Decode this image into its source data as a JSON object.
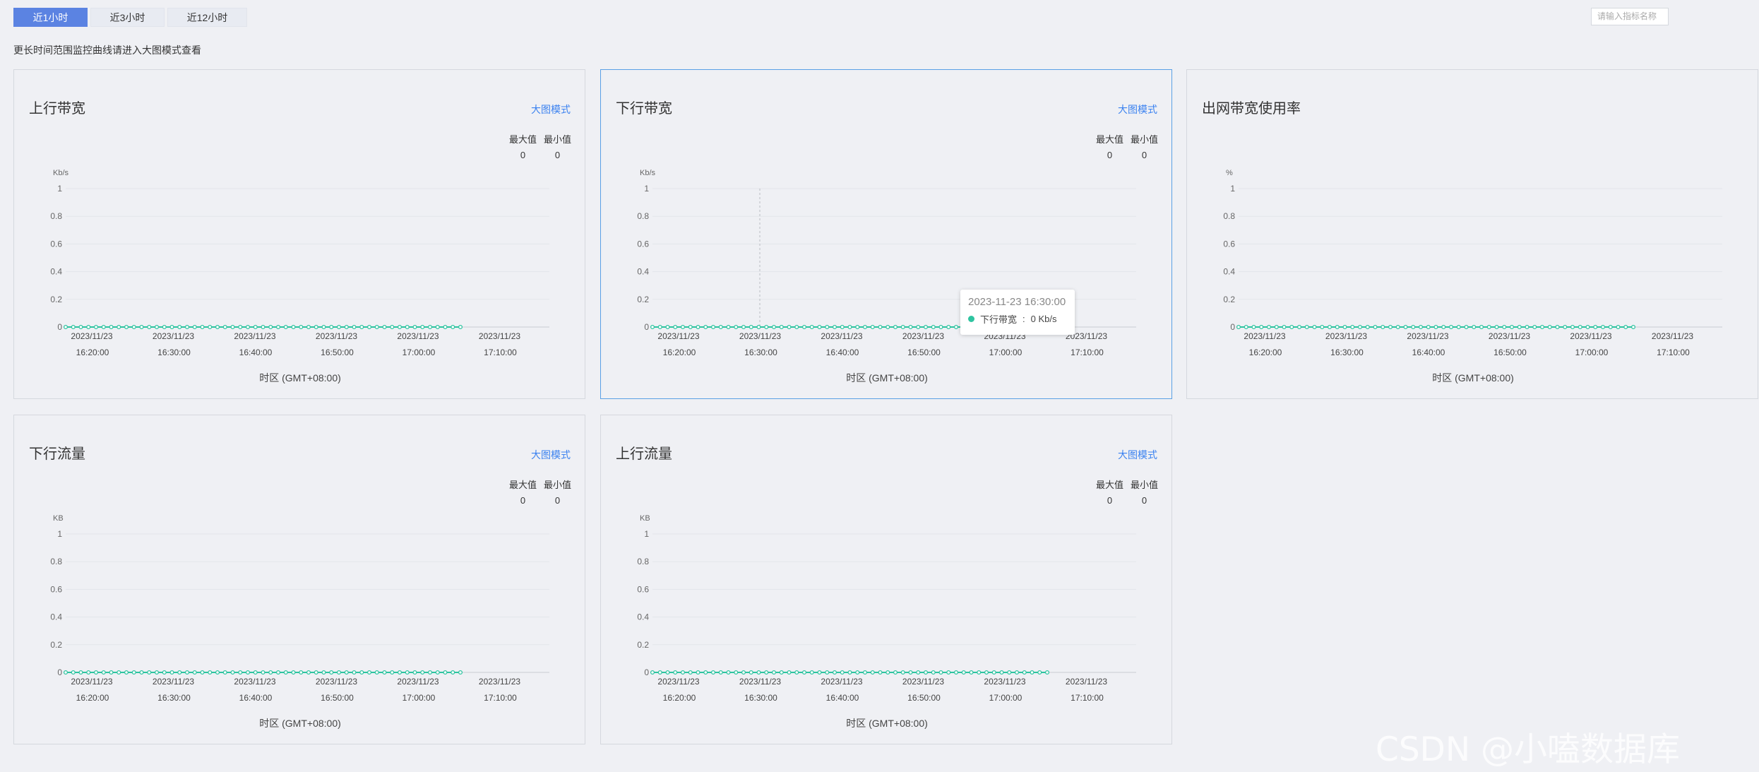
{
  "toolbar": {
    "ranges": [
      "近1小时",
      "近3小时",
      "近12小时"
    ],
    "active_range": "近1小时",
    "search_placeholder": "请输入指标名称"
  },
  "hint": "更长时间范围监控曲线请进入大图模式查看",
  "big_mode_label": "大图模式",
  "stat_labels": {
    "max": "最大值",
    "min": "最小值"
  },
  "timezone_label": "时区 (GMT+08:00)",
  "colors": {
    "series": "#2ec4a0",
    "accent": "#5b83e2",
    "link": "#3b82f0",
    "highlight_border": "#5aa0e5"
  },
  "tooltip": {
    "time": "2023-11-23 16:30:00",
    "series": "下行带宽",
    "value": "0 Kb/s"
  },
  "watermark": "CSDN @小嗑数据库",
  "chart_data": [
    {
      "type": "line",
      "title": "上行带宽",
      "unit": "Kb/s",
      "max": "0",
      "min": "0",
      "x_ticks": [
        [
          "2023/11/23",
          "16:20:00"
        ],
        [
          "2023/11/23",
          "16:30:00"
        ],
        [
          "2023/11/23",
          "16:40:00"
        ],
        [
          "2023/11/23",
          "16:50:00"
        ],
        [
          "2023/11/23",
          "17:00:00"
        ],
        [
          "2023/11/23",
          "17:10:00"
        ]
      ],
      "y_ticks": [
        "0",
        "0.2",
        "0.4",
        "0.6",
        "0.8",
        "1"
      ],
      "ylim": [
        0,
        1
      ],
      "series": [
        {
          "name": "上行带宽",
          "points": 53,
          "value": 0
        }
      ]
    },
    {
      "type": "line",
      "title": "下行带宽",
      "unit": "Kb/s",
      "max": "0",
      "min": "0",
      "highlight": true,
      "x_ticks": [
        [
          "2023/11/23",
          "16:20:00"
        ],
        [
          "2023/11/23",
          "16:30:00"
        ],
        [
          "2023/11/23",
          "16:40:00"
        ],
        [
          "2023/11/23",
          "16:50:00"
        ],
        [
          "2023/11/23",
          "17:00:00"
        ],
        [
          "2023/11/23",
          "17:10:00"
        ]
      ],
      "y_ticks": [
        "0",
        "0.2",
        "0.4",
        "0.6",
        "0.8",
        "1"
      ],
      "ylim": [
        0,
        1
      ],
      "series": [
        {
          "name": "下行带宽",
          "points": 53,
          "value": 0
        }
      ]
    },
    {
      "type": "line",
      "title": "出网带宽使用率",
      "unit": "%",
      "max": "",
      "min": "",
      "x_ticks": [
        [
          "2023/11/23",
          "16:20:00"
        ],
        [
          "2023/11/23",
          "16:30:00"
        ],
        [
          "2023/11/23",
          "16:40:00"
        ],
        [
          "2023/11/23",
          "16:50:00"
        ],
        [
          "2023/11/23",
          "17:00:00"
        ],
        [
          "2023/11/23",
          "17:10:00"
        ]
      ],
      "y_ticks": [
        "0",
        "0.2",
        "0.4",
        "0.6",
        "0.8",
        "1"
      ],
      "ylim": [
        0,
        1
      ],
      "series": [
        {
          "name": "出网带宽使用率",
          "points": 53,
          "value": 0
        }
      ]
    },
    {
      "type": "line",
      "title": "下行流量",
      "unit": "KB",
      "max": "0",
      "min": "0",
      "x_ticks": [
        [
          "2023/11/23",
          "16:20:00"
        ],
        [
          "2023/11/23",
          "16:30:00"
        ],
        [
          "2023/11/23",
          "16:40:00"
        ],
        [
          "2023/11/23",
          "16:50:00"
        ],
        [
          "2023/11/23",
          "17:00:00"
        ],
        [
          "2023/11/23",
          "17:10:00"
        ]
      ],
      "y_ticks": [
        "0",
        "0.2",
        "0.4",
        "0.6",
        "0.8",
        "1"
      ],
      "ylim": [
        0,
        1
      ],
      "series": [
        {
          "name": "下行流量",
          "points": 53,
          "value": 0
        }
      ]
    },
    {
      "type": "line",
      "title": "上行流量",
      "unit": "KB",
      "max": "0",
      "min": "0",
      "x_ticks": [
        [
          "2023/11/23",
          "16:20:00"
        ],
        [
          "2023/11/23",
          "16:30:00"
        ],
        [
          "2023/11/23",
          "16:40:00"
        ],
        [
          "2023/11/23",
          "16:50:00"
        ],
        [
          "2023/11/23",
          "17:00:00"
        ],
        [
          "2023/11/23",
          "17:10:00"
        ]
      ],
      "y_ticks": [
        "0",
        "0.2",
        "0.4",
        "0.6",
        "0.8",
        "1"
      ],
      "ylim": [
        0,
        1
      ],
      "series": [
        {
          "name": "上行流量",
          "points": 53,
          "value": 0
        }
      ]
    }
  ]
}
